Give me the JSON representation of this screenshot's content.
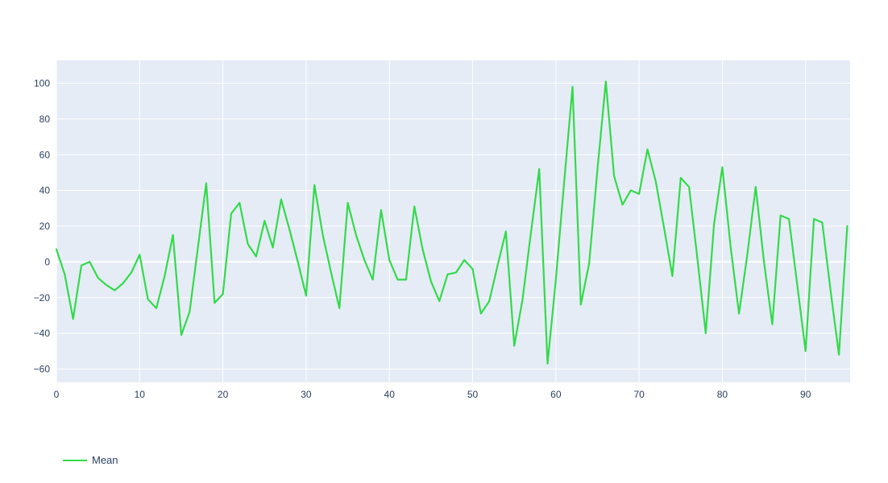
{
  "chart_data": {
    "type": "line",
    "title": "",
    "xlabel": "",
    "ylabel": "",
    "grid": true,
    "legend_position": "bottom-left",
    "x_range": [
      0,
      95.35
    ],
    "y_range": [
      -67.5,
      112.8
    ],
    "x_ticks": [
      0,
      10,
      20,
      30,
      40,
      50,
      60,
      70,
      80,
      90
    ],
    "x_tick_labels": [
      "0",
      "10",
      "20",
      "30",
      "40",
      "50",
      "60",
      "70",
      "80",
      "90"
    ],
    "y_ticks": [
      -60,
      -40,
      -20,
      0,
      20,
      40,
      60,
      80,
      100
    ],
    "y_tick_labels": [
      "−60",
      "−40",
      "−20",
      "0",
      "20",
      "40",
      "60",
      "80",
      "100"
    ],
    "colors": {
      "plot_background": "#E5ECF6",
      "paper_background": "#FFFFFF",
      "grid": "#FFFFFF",
      "tick_text": "#2A3F5F",
      "legend_text": "#2A3F5F",
      "series_green": "#33DA4A"
    },
    "series": [
      {
        "name": "Mean",
        "color": "#33DA4A",
        "x": [
          0,
          1,
          2,
          3,
          4,
          5,
          6,
          7,
          8,
          9,
          10,
          11,
          12,
          13,
          14,
          15,
          16,
          17,
          18,
          19,
          20,
          21,
          22,
          23,
          24,
          25,
          26,
          27,
          28,
          29,
          30,
          31,
          32,
          33,
          34,
          35,
          36,
          37,
          38,
          39,
          40,
          41,
          42,
          43,
          44,
          45,
          46,
          47,
          48,
          49,
          50,
          51,
          52,
          53,
          54,
          55,
          56,
          57,
          58,
          59,
          60,
          61,
          62,
          63,
          64,
          65,
          66,
          67,
          68,
          69,
          70,
          71,
          72,
          73,
          74,
          75,
          76,
          77,
          78,
          79,
          80,
          81,
          82,
          83,
          84,
          85,
          86,
          87,
          88,
          89,
          90,
          91,
          92,
          93,
          94,
          95
        ],
        "values": [
          7,
          -7,
          -32,
          -2,
          0,
          -9,
          -13,
          -16,
          -12,
          -6,
          4,
          -21,
          -26,
          -8,
          15,
          -41,
          -28,
          8,
          44,
          -23,
          -18,
          27,
          33,
          10,
          3,
          23,
          8,
          35,
          18,
          0,
          -19,
          43,
          15,
          -6,
          -26,
          33,
          15,
          1,
          -10,
          29,
          1,
          -10,
          -10,
          31,
          7,
          -11,
          -22,
          -7,
          -6,
          1,
          -4,
          -29,
          -22,
          -2,
          17,
          -47,
          -21,
          16,
          52,
          -57,
          -10,
          45,
          98,
          -24,
          -1,
          52,
          101,
          48,
          32,
          40,
          38,
          63,
          45,
          19,
          -8,
          47,
          42,
          2,
          -40,
          21,
          53,
          8,
          -29,
          4,
          42,
          0,
          -35,
          26,
          24,
          -13,
          -50,
          24,
          22,
          -16,
          -52,
          20
        ]
      }
    ]
  }
}
